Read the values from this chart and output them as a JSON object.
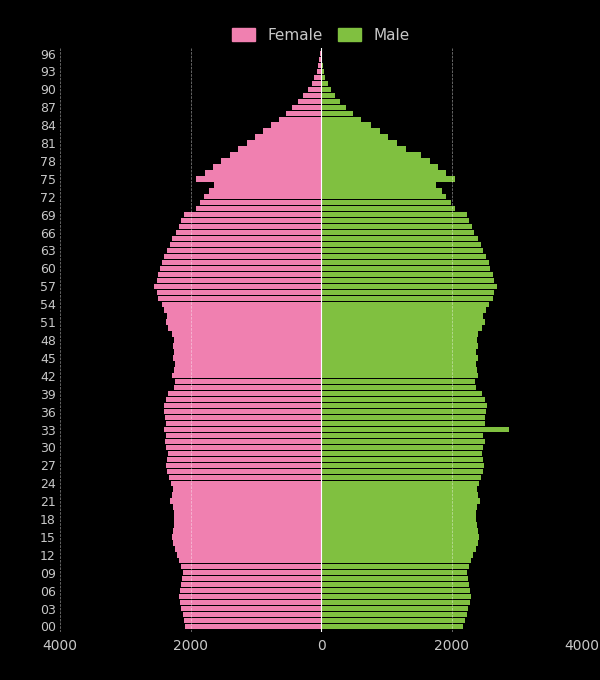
{
  "background_color": "#000000",
  "text_color": "#c8c8c8",
  "female_color": "#f080b0",
  "male_color": "#80c040",
  "xlim": [
    -4000,
    4000
  ],
  "xticks": [
    -4000,
    -2000,
    0,
    2000,
    4000
  ],
  "ages": [
    0,
    1,
    2,
    3,
    4,
    5,
    6,
    7,
    8,
    9,
    10,
    11,
    12,
    13,
    14,
    15,
    16,
    17,
    18,
    19,
    20,
    21,
    22,
    23,
    24,
    25,
    26,
    27,
    28,
    29,
    30,
    31,
    32,
    33,
    34,
    35,
    36,
    37,
    38,
    39,
    40,
    41,
    42,
    43,
    44,
    45,
    46,
    47,
    48,
    49,
    50,
    51,
    52,
    53,
    54,
    55,
    56,
    57,
    58,
    59,
    60,
    61,
    62,
    63,
    64,
    65,
    66,
    67,
    68,
    69,
    70,
    71,
    72,
    73,
    74,
    75,
    76,
    77,
    78,
    79,
    80,
    81,
    82,
    83,
    84,
    85,
    86,
    87,
    88,
    89,
    90,
    91,
    92,
    93,
    94,
    95,
    96
  ],
  "female_vals": [
    2080,
    2100,
    2120,
    2140,
    2160,
    2180,
    2165,
    2150,
    2135,
    2120,
    2150,
    2180,
    2210,
    2240,
    2270,
    2290,
    2275,
    2260,
    2250,
    2260,
    2270,
    2310,
    2290,
    2270,
    2300,
    2330,
    2360,
    2380,
    2360,
    2340,
    2370,
    2390,
    2370,
    2400,
    2380,
    2390,
    2400,
    2410,
    2380,
    2340,
    2250,
    2230,
    2280,
    2260,
    2240,
    2270,
    2250,
    2270,
    2260,
    2280,
    2340,
    2380,
    2360,
    2400,
    2440,
    2500,
    2520,
    2560,
    2520,
    2500,
    2460,
    2440,
    2400,
    2360,
    2320,
    2280,
    2220,
    2180,
    2140,
    2100,
    1920,
    1860,
    1790,
    1720,
    1640,
    1910,
    1780,
    1650,
    1530,
    1400,
    1270,
    1140,
    1010,
    890,
    770,
    650,
    540,
    440,
    350,
    270,
    200,
    145,
    100,
    68,
    45,
    28,
    15
  ],
  "male_vals": [
    2180,
    2205,
    2230,
    2255,
    2280,
    2305,
    2288,
    2271,
    2254,
    2237,
    2270,
    2303,
    2336,
    2369,
    2402,
    2420,
    2403,
    2386,
    2370,
    2380,
    2390,
    2430,
    2410,
    2390,
    2420,
    2450,
    2480,
    2500,
    2480,
    2460,
    2490,
    2510,
    2490,
    2880,
    2510,
    2520,
    2530,
    2540,
    2510,
    2470,
    2380,
    2360,
    2410,
    2390,
    2370,
    2400,
    2380,
    2400,
    2390,
    2410,
    2470,
    2510,
    2490,
    2530,
    2570,
    2630,
    2650,
    2690,
    2650,
    2630,
    2590,
    2570,
    2530,
    2490,
    2450,
    2410,
    2350,
    2310,
    2270,
    2230,
    2050,
    1990,
    1920,
    1850,
    1770,
    2050,
    1920,
    1790,
    1670,
    1540,
    1310,
    1170,
    1030,
    900,
    760,
    620,
    495,
    385,
    290,
    210,
    148,
    102,
    68,
    44,
    27,
    16,
    9
  ]
}
